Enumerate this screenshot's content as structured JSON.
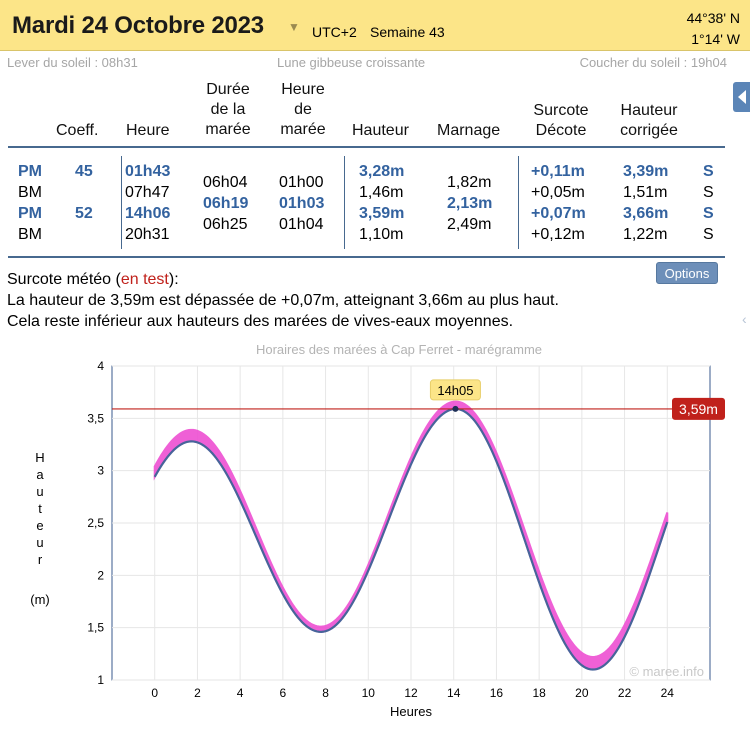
{
  "header": {
    "date": "Mardi 24 Octobre 2023",
    "timezone": "UTC+2",
    "week": "Semaine 43",
    "lat": "44°38' N",
    "lon": "1°14' W"
  },
  "sun": {
    "sunrise": "Lever du soleil : 08h31",
    "moon": "Lune gibbeuse croissante",
    "sunset": "Coucher du soleil : 19h04"
  },
  "table": {
    "headers": {
      "coeff": "Coeff.",
      "heure": "Heure",
      "duree": [
        "Durée",
        "de la",
        "marée"
      ],
      "heure_maree": [
        "Heure",
        "de",
        "marée"
      ],
      "hauteur": "Hauteur",
      "marnage": "Marnage",
      "surcote": [
        "Surcote",
        "Décote"
      ],
      "hauteur_corrigee": [
        "Hauteur",
        "corrigée"
      ]
    },
    "rows": [
      {
        "type": "PM",
        "coeff": "45",
        "heure": "01h43",
        "hauteur": "3,28m",
        "surcote": "+0,11m",
        "corrigee": "3,39m",
        "flag": "S",
        "highlight": true
      },
      {
        "type": "BM",
        "coeff": "",
        "heure": "07h47",
        "hauteur": "1,46m",
        "surcote": "+0,05m",
        "corrigee": "1,51m",
        "flag": "S",
        "highlight": false
      },
      {
        "type": "PM",
        "coeff": "52",
        "heure": "14h06",
        "hauteur": "3,59m",
        "surcote": "+0,07m",
        "corrigee": "3,66m",
        "flag": "S",
        "highlight": true
      },
      {
        "type": "BM",
        "coeff": "",
        "heure": "20h31",
        "hauteur": "1,10m",
        "surcote": "+0,12m",
        "corrigee": "1,22m",
        "flag": "S",
        "highlight": false
      }
    ],
    "intervals": [
      {
        "duree": "06h04",
        "heure_maree": "01h00",
        "marnage": "1,82m",
        "highlight": false
      },
      {
        "duree": "06h19",
        "heure_maree": "01h03",
        "marnage": "2,13m",
        "highlight": true
      },
      {
        "duree": "06h25",
        "heure_maree": "01h04",
        "marnage": "2,49m",
        "highlight": false
      }
    ]
  },
  "surcote_meteo": {
    "label": "Surcote météo (",
    "test": "en test",
    "label_end": "):",
    "line1": "La hauteur de 3,59m est dépassée de +0,07m, atteignant 3,66m au plus haut.",
    "line2": "Cela reste inférieur aux hauteurs des marées de vives-eaux moyennes.",
    "options_label": "Options"
  },
  "colors": {
    "header_bg": "#fce588",
    "accent_blue": "#33629f",
    "curve": "#46659a",
    "surge_band": "#ee4fd2",
    "threshold_line": "#c0211b"
  },
  "chart_data": {
    "type": "line",
    "title": "Horaires des marées à Cap Ferret - marégramme",
    "xlabel": "Heures",
    "ylabel": "Hauteur",
    "yunit": "(m)",
    "xlim": [
      -2,
      26
    ],
    "ylim": [
      1,
      4
    ],
    "xticks": [
      "0",
      "2",
      "4",
      "6",
      "8",
      "10",
      "12",
      "14",
      "16",
      "18",
      "20",
      "22",
      "24"
    ],
    "yticks": [
      "1",
      "1,5",
      "2",
      "2,5",
      "3",
      "3,5",
      "4"
    ],
    "grid": true,
    "extrema": [
      {
        "t": 1.72,
        "h": 3.28,
        "surge": 0.11
      },
      {
        "t": 7.78,
        "h": 1.46,
        "surge": 0.05
      },
      {
        "t": 14.1,
        "h": 3.59,
        "surge": 0.07
      },
      {
        "t": 20.52,
        "h": 1.1,
        "surge": 0.12
      }
    ],
    "series": [
      {
        "name": "",
        "points": [
          [
            0,
            2.93
          ],
          [
            1,
            3.18
          ],
          [
            1.72,
            3.28
          ],
          [
            3,
            3.05
          ],
          [
            5,
            2.3
          ],
          [
            7,
            1.6
          ],
          [
            7.78,
            1.46
          ],
          [
            9,
            1.72
          ],
          [
            11,
            2.6
          ],
          [
            13,
            3.4
          ],
          [
            14.1,
            3.59
          ],
          [
            16,
            3.1
          ],
          [
            18,
            2.05
          ],
          [
            20,
            1.2
          ],
          [
            20.52,
            1.1
          ],
          [
            22,
            1.4
          ],
          [
            24,
            2.52
          ]
        ]
      }
    ],
    "threshold": {
      "value": 3.59,
      "label": "3,59m"
    },
    "marker": {
      "t": 14.08,
      "h": 3.59,
      "label": "14h05"
    },
    "watermark": "© maree.info"
  }
}
